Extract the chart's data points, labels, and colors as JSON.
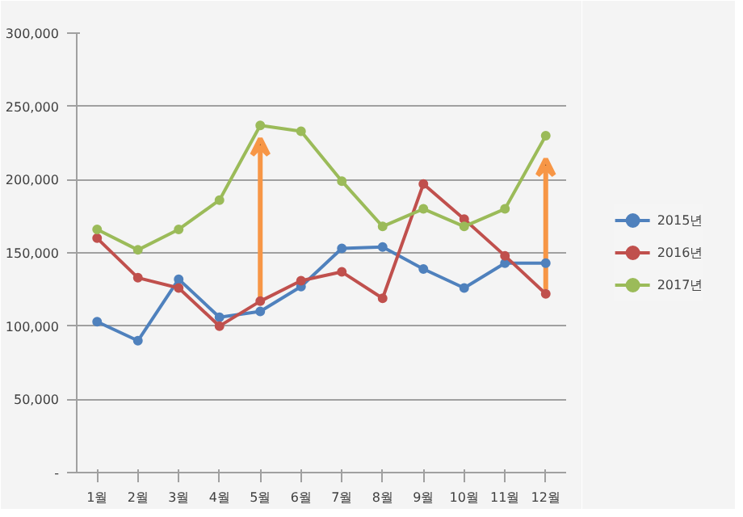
{
  "chart_data": {
    "type": "line",
    "categories": [
      "1월",
      "2월",
      "3월",
      "4월",
      "5월",
      "6월",
      "7월",
      "8월",
      "9월",
      "10월",
      "11월",
      "12월"
    ],
    "series": [
      {
        "name": "2015년",
        "color": "#4f81bd",
        "values": [
          103000,
          90000,
          132000,
          106000,
          110000,
          127000,
          153000,
          154000,
          139000,
          126000,
          143000,
          143000
        ]
      },
      {
        "name": "2016년",
        "color": "#c0504d",
        "values": [
          160000,
          133000,
          126000,
          100000,
          117000,
          131000,
          137000,
          119000,
          197000,
          173000,
          148000,
          122000
        ]
      },
      {
        "name": "2017년",
        "color": "#9bbb59",
        "values": [
          166000,
          152000,
          166000,
          186000,
          237000,
          233000,
          199000,
          168000,
          180000,
          168000,
          180000,
          230000
        ]
      }
    ],
    "ylim": [
      0,
      300000
    ],
    "yticks": [
      {
        "value": 0,
        "label": "-"
      },
      {
        "value": 50000,
        "label": "50,000"
      },
      {
        "value": 100000,
        "label": "100,000"
      },
      {
        "value": 150000,
        "label": "150,000"
      },
      {
        "value": 200000,
        "label": "200,000"
      },
      {
        "value": 250000,
        "label": "250,000"
      },
      {
        "value": 300000,
        "label": "300,000"
      }
    ],
    "grid": "y",
    "legend": "right",
    "marker": "circle",
    "line_style": "solid"
  }
}
